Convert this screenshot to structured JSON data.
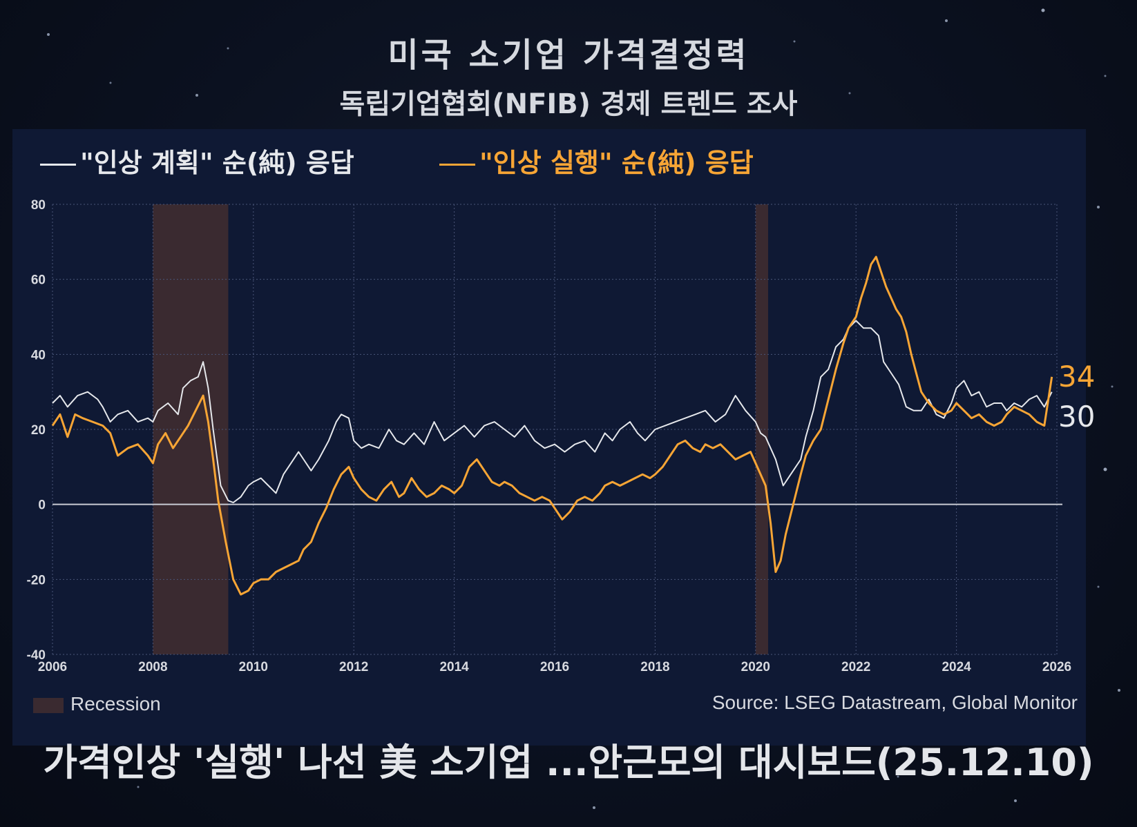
{
  "header": {
    "title": "미국  소기업 가격결정력",
    "subtitle": "독립기업협회(NFIB) 경제 트렌드 조사"
  },
  "legend": {
    "plan": "\"인상 계획\" 순(純) 응답",
    "exec": "\"인상 실행\" 순(純) 응답"
  },
  "footer": {
    "recession": "Recession",
    "source": "Source: LSEG Datastream, Global Monitor",
    "caption": "가격인상 '실행' 나선 美 소기업 ...안근모의 대시보드(25.12.10)"
  },
  "colors": {
    "plan": "#e6e8ec",
    "exec": "#f7a535",
    "recession": "#3a2a30",
    "grid": "#4a5578",
    "zero": "#c9ccd4"
  },
  "chart_data": {
    "type": "line",
    "title": "미국  소기업 가격결정력",
    "xlim": [
      2006,
      2026
    ],
    "ylim": [
      -40,
      80
    ],
    "x_ticks": [
      2006,
      2008,
      2010,
      2012,
      2014,
      2016,
      2018,
      2020,
      2022,
      2024,
      2026
    ],
    "x_tick_labels": [
      "2006",
      "2008",
      "2010",
      "2012",
      "2014",
      "2016",
      "2018",
      "2020",
      "2022",
      "2024",
      "2026"
    ],
    "y_ticks": [
      -40,
      -20,
      0,
      20,
      40,
      60,
      80
    ],
    "y_tick_labels": [
      "-40",
      "-20",
      "0",
      "20",
      "40",
      "60",
      "80"
    ],
    "grid": true,
    "recessions": [
      [
        2008.0,
        2009.5
      ],
      [
        2020.0,
        2020.25
      ]
    ],
    "series": [
      {
        "name": "\"인상 계획\" 순(純) 응답",
        "end_label": "30",
        "points": [
          [
            2006.0,
            27
          ],
          [
            2006.15,
            29
          ],
          [
            2006.3,
            26
          ],
          [
            2006.5,
            29
          ],
          [
            2006.7,
            30
          ],
          [
            2006.9,
            28
          ],
          [
            2007.0,
            26
          ],
          [
            2007.15,
            22
          ],
          [
            2007.3,
            24
          ],
          [
            2007.5,
            25
          ],
          [
            2007.7,
            22
          ],
          [
            2007.9,
            23
          ],
          [
            2008.0,
            22
          ],
          [
            2008.1,
            25
          ],
          [
            2008.3,
            27
          ],
          [
            2008.5,
            24
          ],
          [
            2008.6,
            31
          ],
          [
            2008.75,
            33
          ],
          [
            2008.9,
            34
          ],
          [
            2009.0,
            38
          ],
          [
            2009.1,
            31
          ],
          [
            2009.2,
            20
          ],
          [
            2009.35,
            5
          ],
          [
            2009.5,
            1
          ],
          [
            2009.6,
            0.5
          ],
          [
            2009.75,
            2
          ],
          [
            2009.9,
            5
          ],
          [
            2010.0,
            6
          ],
          [
            2010.15,
            7
          ],
          [
            2010.3,
            5
          ],
          [
            2010.45,
            3
          ],
          [
            2010.6,
            8
          ],
          [
            2010.75,
            11
          ],
          [
            2010.9,
            14
          ],
          [
            2011.0,
            12
          ],
          [
            2011.15,
            9
          ],
          [
            2011.3,
            12
          ],
          [
            2011.5,
            17
          ],
          [
            2011.65,
            22
          ],
          [
            2011.75,
            24
          ],
          [
            2011.9,
            23
          ],
          [
            2012.0,
            17
          ],
          [
            2012.15,
            15
          ],
          [
            2012.3,
            16
          ],
          [
            2012.5,
            15
          ],
          [
            2012.7,
            20
          ],
          [
            2012.85,
            17
          ],
          [
            2013.0,
            16
          ],
          [
            2013.2,
            19
          ],
          [
            2013.4,
            16
          ],
          [
            2013.6,
            22
          ],
          [
            2013.8,
            17
          ],
          [
            2014.0,
            19
          ],
          [
            2014.2,
            21
          ],
          [
            2014.4,
            18
          ],
          [
            2014.6,
            21
          ],
          [
            2014.8,
            22
          ],
          [
            2015.0,
            20
          ],
          [
            2015.2,
            18
          ],
          [
            2015.4,
            21
          ],
          [
            2015.6,
            17
          ],
          [
            2015.8,
            15
          ],
          [
            2016.0,
            16
          ],
          [
            2016.2,
            14
          ],
          [
            2016.4,
            16
          ],
          [
            2016.6,
            17
          ],
          [
            2016.8,
            14
          ],
          [
            2017.0,
            19
          ],
          [
            2017.15,
            17
          ],
          [
            2017.3,
            20
          ],
          [
            2017.5,
            22
          ],
          [
            2017.65,
            19
          ],
          [
            2017.8,
            17
          ],
          [
            2018.0,
            20
          ],
          [
            2018.2,
            21
          ],
          [
            2018.4,
            22
          ],
          [
            2018.6,
            23
          ],
          [
            2018.8,
            24
          ],
          [
            2019.0,
            25
          ],
          [
            2019.2,
            22
          ],
          [
            2019.4,
            24
          ],
          [
            2019.6,
            29
          ],
          [
            2019.8,
            25
          ],
          [
            2020.0,
            22
          ],
          [
            2020.1,
            19
          ],
          [
            2020.2,
            18
          ],
          [
            2020.3,
            15
          ],
          [
            2020.4,
            12
          ],
          [
            2020.55,
            5
          ],
          [
            2020.75,
            9
          ],
          [
            2020.9,
            12
          ],
          [
            2021.0,
            18
          ],
          [
            2021.15,
            25
          ],
          [
            2021.3,
            34
          ],
          [
            2021.45,
            36
          ],
          [
            2021.6,
            42
          ],
          [
            2021.75,
            44
          ],
          [
            2021.85,
            47
          ],
          [
            2022.0,
            49
          ],
          [
            2022.15,
            47
          ],
          [
            2022.3,
            47
          ],
          [
            2022.45,
            45
          ],
          [
            2022.55,
            38
          ],
          [
            2022.7,
            35
          ],
          [
            2022.85,
            32
          ],
          [
            2023.0,
            26
          ],
          [
            2023.15,
            25
          ],
          [
            2023.3,
            25
          ],
          [
            2023.45,
            28
          ],
          [
            2023.6,
            24
          ],
          [
            2023.75,
            23
          ],
          [
            2023.9,
            27
          ],
          [
            2024.0,
            31
          ],
          [
            2024.15,
            33
          ],
          [
            2024.3,
            29
          ],
          [
            2024.45,
            30
          ],
          [
            2024.6,
            26
          ],
          [
            2024.75,
            27
          ],
          [
            2024.9,
            27
          ],
          [
            2025.0,
            25
          ],
          [
            2025.15,
            27
          ],
          [
            2025.3,
            26
          ],
          [
            2025.45,
            28
          ],
          [
            2025.6,
            29
          ],
          [
            2025.75,
            26
          ],
          [
            2025.9,
            30
          ]
        ]
      },
      {
        "name": "\"인상 실행\" 순(純) 응답",
        "end_label": "34",
        "points": [
          [
            2006.0,
            21
          ],
          [
            2006.15,
            24
          ],
          [
            2006.3,
            18
          ],
          [
            2006.45,
            24
          ],
          [
            2006.6,
            23
          ],
          [
            2006.8,
            22
          ],
          [
            2007.0,
            21
          ],
          [
            2007.15,
            19
          ],
          [
            2007.3,
            13
          ],
          [
            2007.5,
            15
          ],
          [
            2007.7,
            16
          ],
          [
            2007.9,
            13
          ],
          [
            2008.0,
            11
          ],
          [
            2008.1,
            16
          ],
          [
            2008.25,
            19
          ],
          [
            2008.4,
            15
          ],
          [
            2008.55,
            18
          ],
          [
            2008.7,
            21
          ],
          [
            2008.85,
            25
          ],
          [
            2009.0,
            29
          ],
          [
            2009.1,
            22
          ],
          [
            2009.2,
            12
          ],
          [
            2009.3,
            1
          ],
          [
            2009.45,
            -10
          ],
          [
            2009.6,
            -20
          ],
          [
            2009.75,
            -24
          ],
          [
            2009.9,
            -23
          ],
          [
            2010.0,
            -21
          ],
          [
            2010.15,
            -20
          ],
          [
            2010.3,
            -20
          ],
          [
            2010.45,
            -18
          ],
          [
            2010.6,
            -17
          ],
          [
            2010.75,
            -16
          ],
          [
            2010.9,
            -15
          ],
          [
            2011.0,
            -12
          ],
          [
            2011.15,
            -10
          ],
          [
            2011.3,
            -5
          ],
          [
            2011.45,
            -1
          ],
          [
            2011.6,
            4
          ],
          [
            2011.75,
            8
          ],
          [
            2011.9,
            10
          ],
          [
            2012.0,
            7
          ],
          [
            2012.15,
            4
          ],
          [
            2012.3,
            2
          ],
          [
            2012.45,
            1
          ],
          [
            2012.6,
            4
          ],
          [
            2012.75,
            6
          ],
          [
            2012.9,
            2
          ],
          [
            2013.0,
            3
          ],
          [
            2013.15,
            7
          ],
          [
            2013.3,
            4
          ],
          [
            2013.45,
            2
          ],
          [
            2013.6,
            3
          ],
          [
            2013.75,
            5
          ],
          [
            2013.9,
            4
          ],
          [
            2014.0,
            3
          ],
          [
            2014.15,
            5
          ],
          [
            2014.3,
            10
          ],
          [
            2014.45,
            12
          ],
          [
            2014.6,
            9
          ],
          [
            2014.75,
            6
          ],
          [
            2014.9,
            5
          ],
          [
            2015.0,
            6
          ],
          [
            2015.15,
            5
          ],
          [
            2015.3,
            3
          ],
          [
            2015.45,
            2
          ],
          [
            2015.6,
            1
          ],
          [
            2015.75,
            2
          ],
          [
            2015.9,
            1
          ],
          [
            2016.0,
            -1
          ],
          [
            2016.15,
            -4
          ],
          [
            2016.3,
            -2
          ],
          [
            2016.45,
            1
          ],
          [
            2016.6,
            2
          ],
          [
            2016.75,
            1
          ],
          [
            2016.9,
            3
          ],
          [
            2017.0,
            5
          ],
          [
            2017.15,
            6
          ],
          [
            2017.3,
            5
          ],
          [
            2017.45,
            6
          ],
          [
            2017.6,
            7
          ],
          [
            2017.75,
            8
          ],
          [
            2017.9,
            7
          ],
          [
            2018.0,
            8
          ],
          [
            2018.15,
            10
          ],
          [
            2018.3,
            13
          ],
          [
            2018.45,
            16
          ],
          [
            2018.6,
            17
          ],
          [
            2018.75,
            15
          ],
          [
            2018.9,
            14
          ],
          [
            2019.0,
            16
          ],
          [
            2019.15,
            15
          ],
          [
            2019.3,
            16
          ],
          [
            2019.45,
            14
          ],
          [
            2019.6,
            12
          ],
          [
            2019.75,
            13
          ],
          [
            2019.9,
            14
          ],
          [
            2020.0,
            11
          ],
          [
            2020.1,
            8
          ],
          [
            2020.2,
            5
          ],
          [
            2020.3,
            -5
          ],
          [
            2020.4,
            -18
          ],
          [
            2020.5,
            -15
          ],
          [
            2020.6,
            -8
          ],
          [
            2020.75,
            0
          ],
          [
            2020.9,
            8
          ],
          [
            2021.0,
            13
          ],
          [
            2021.15,
            17
          ],
          [
            2021.3,
            20
          ],
          [
            2021.45,
            28
          ],
          [
            2021.6,
            36
          ],
          [
            2021.75,
            43
          ],
          [
            2021.85,
            47
          ],
          [
            2022.0,
            50
          ],
          [
            2022.1,
            55
          ],
          [
            2022.2,
            59
          ],
          [
            2022.3,
            64
          ],
          [
            2022.4,
            66
          ],
          [
            2022.5,
            62
          ],
          [
            2022.6,
            58
          ],
          [
            2022.7,
            55
          ],
          [
            2022.8,
            52
          ],
          [
            2022.9,
            50
          ],
          [
            2023.0,
            46
          ],
          [
            2023.1,
            40
          ],
          [
            2023.2,
            35
          ],
          [
            2023.3,
            30
          ],
          [
            2023.45,
            27
          ],
          [
            2023.6,
            25
          ],
          [
            2023.75,
            24
          ],
          [
            2023.9,
            25
          ],
          [
            2024.0,
            27
          ],
          [
            2024.15,
            25
          ],
          [
            2024.3,
            23
          ],
          [
            2024.45,
            24
          ],
          [
            2024.6,
            22
          ],
          [
            2024.75,
            21
          ],
          [
            2024.9,
            22
          ],
          [
            2025.0,
            24
          ],
          [
            2025.15,
            26
          ],
          [
            2025.3,
            25
          ],
          [
            2025.45,
            24
          ],
          [
            2025.6,
            22
          ],
          [
            2025.75,
            21
          ],
          [
            2025.9,
            34
          ]
        ]
      }
    ]
  }
}
